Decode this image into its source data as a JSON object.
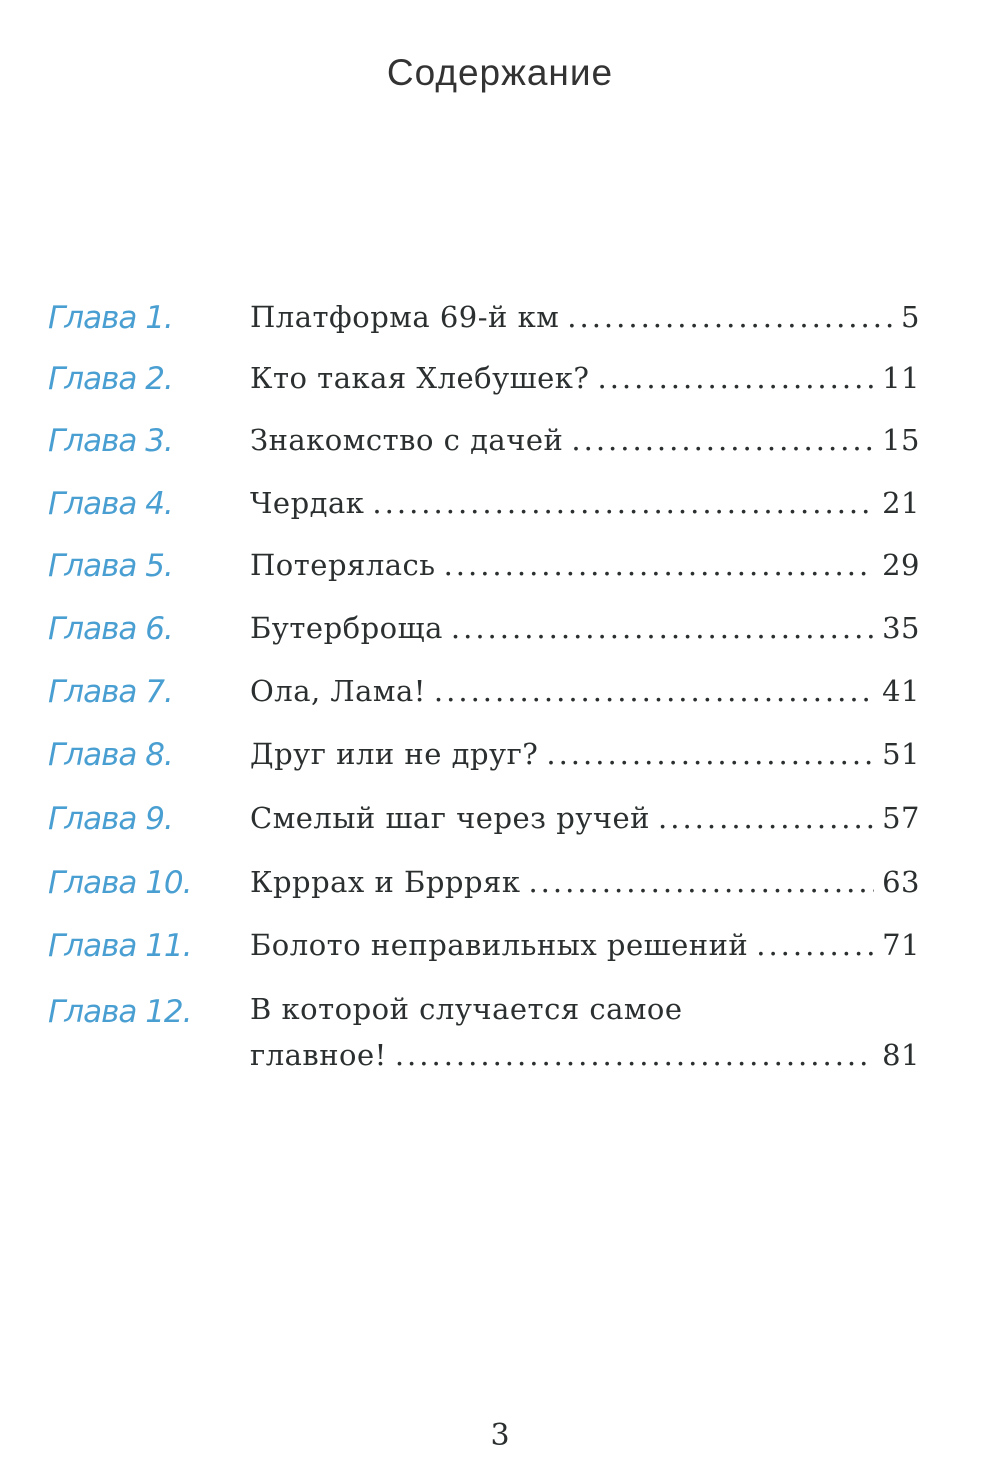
{
  "title": "Содержание",
  "chapters": [
    {
      "label": "Глава 1.",
      "title": "Платформа 69-й км",
      "page": "5"
    },
    {
      "label": "Глава 2.",
      "title": "Кто такая Хлебушек?",
      "page": "11"
    },
    {
      "label": "Глава 3.",
      "title": "Знакомство с дачей",
      "page": "15"
    },
    {
      "label": "Глава 4.",
      "title": "Чердак",
      "page": "21"
    },
    {
      "label": "Глава 5.",
      "title": "Потерялась",
      "page": "29"
    },
    {
      "label": "Глава 6.",
      "title": "Бутерброща",
      "page": "35"
    },
    {
      "label": "Глава 7.",
      "title": "Ола, Лама!",
      "page": "41"
    },
    {
      "label": "Глава 8.",
      "title": "Друг или не друг?",
      "page": "51"
    },
    {
      "label": "Глава 9.",
      "title": "Смелый шаг через ручей",
      "page": "57"
    },
    {
      "label": "Глава 10.",
      "title": "Крррах и Бррряк",
      "page": "63"
    },
    {
      "label": "Глава 11.",
      "title": "Болото неправильных решений",
      "page": "71"
    },
    {
      "label": "Глава 12.",
      "title": "В которой случается самое",
      "title_line2": "главное!",
      "page": "81"
    }
  ],
  "page_number": "3",
  "colors": {
    "handwriting": "#4a9fd2",
    "text": "#2b2f2f"
  }
}
